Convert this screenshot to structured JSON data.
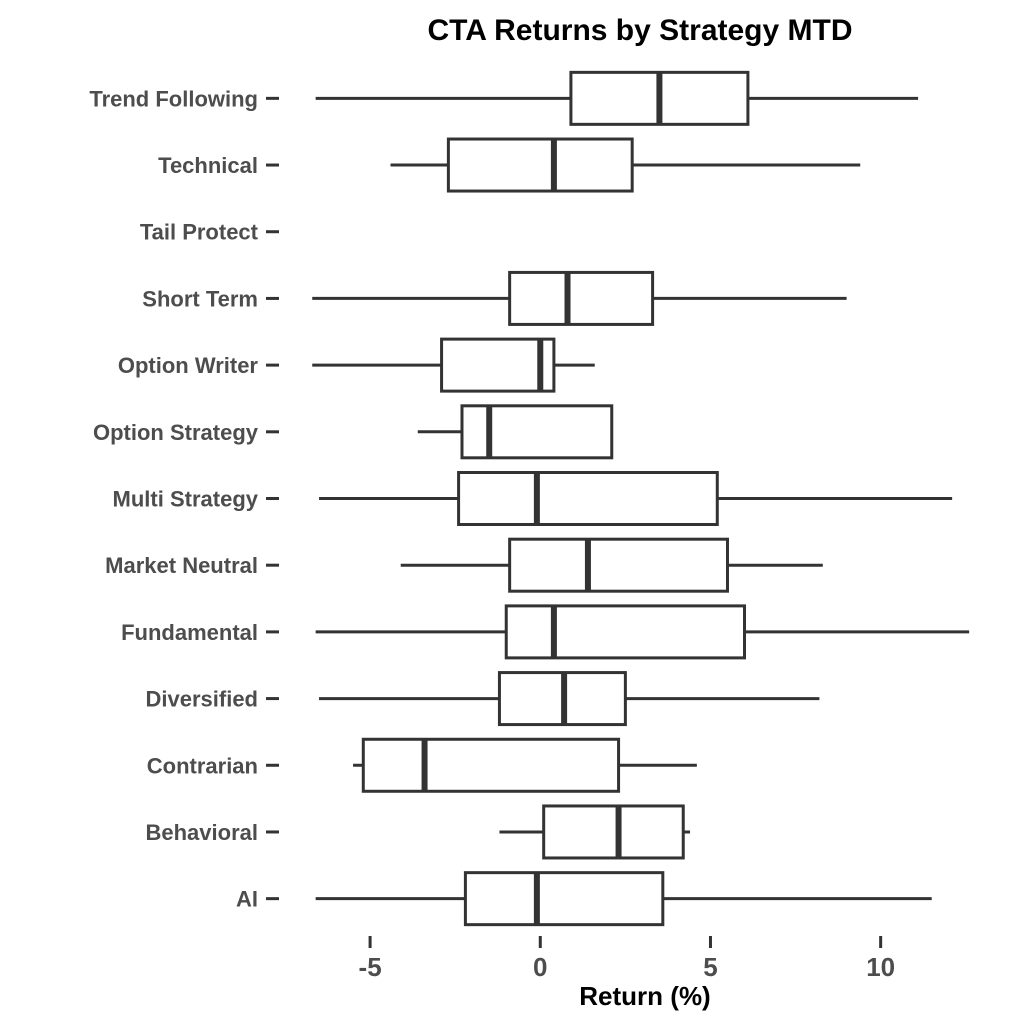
{
  "title": "CTA Returns by Strategy MTD",
  "chart_data": {
    "type": "boxplot",
    "orientation": "horizontal",
    "title": "CTA Returns by Strategy MTD",
    "xlabel": "Return (%)",
    "ylabel": "",
    "xlim": [
      -7.5,
      13.8
    ],
    "x_ticks": [
      -5,
      0,
      5,
      10
    ],
    "x_tick_labels": [
      "-5",
      "0",
      "5",
      "10"
    ],
    "grid": false,
    "legend": "none",
    "categories": [
      "Trend Following",
      "Technical",
      "Tail Protect",
      "Short Term",
      "Option Writer",
      "Option Strategy",
      "Multi Strategy",
      "Market Neutral",
      "Fundamental",
      "Diversified",
      "Contrarian",
      "Behavioral",
      "AI"
    ],
    "boxes": [
      {
        "category": "Trend Following",
        "whisker_low": -6.6,
        "q1": 0.9,
        "median": 3.5,
        "q3": 6.1,
        "whisker_high": 11.1
      },
      {
        "category": "Technical",
        "whisker_low": -4.4,
        "q1": -2.7,
        "median": 0.4,
        "q3": 2.7,
        "whisker_high": 9.4
      },
      {
        "category": "Tail Protect",
        "whisker_low": null,
        "q1": null,
        "median": null,
        "q3": null,
        "whisker_high": null
      },
      {
        "category": "Short Term",
        "whisker_low": -6.7,
        "q1": -0.9,
        "median": 0.8,
        "q3": 3.3,
        "whisker_high": 9.0
      },
      {
        "category": "Option Writer",
        "whisker_low": -6.7,
        "q1": -2.9,
        "median": 0.0,
        "q3": 0.4,
        "whisker_high": 1.6
      },
      {
        "category": "Option Strategy",
        "whisker_low": -3.6,
        "q1": -2.3,
        "median": -1.5,
        "q3": 2.1,
        "whisker_high": 2.1
      },
      {
        "category": "Multi Strategy",
        "whisker_low": -6.5,
        "q1": -2.4,
        "median": -0.1,
        "q3": 5.2,
        "whisker_high": 12.1
      },
      {
        "category": "Market Neutral",
        "whisker_low": -4.1,
        "q1": -0.9,
        "median": 1.4,
        "q3": 5.5,
        "whisker_high": 8.3
      },
      {
        "category": "Fundamental",
        "whisker_low": -6.6,
        "q1": -1.0,
        "median": 0.4,
        "q3": 6.0,
        "whisker_high": 12.6
      },
      {
        "category": "Diversified",
        "whisker_low": -6.5,
        "q1": -1.2,
        "median": 0.7,
        "q3": 2.5,
        "whisker_high": 8.2
      },
      {
        "category": "Contrarian",
        "whisker_low": -5.5,
        "q1": -5.2,
        "median": -3.4,
        "q3": 2.3,
        "whisker_high": 4.6
      },
      {
        "category": "Behavioral",
        "whisker_low": -1.2,
        "q1": 0.1,
        "median": 2.3,
        "q3": 4.2,
        "whisker_high": 4.4
      },
      {
        "category": "AI",
        "whisker_low": -6.6,
        "q1": -2.2,
        "median": -0.1,
        "q3": 3.6,
        "whisker_high": 11.5
      }
    ],
    "colors": {
      "background": "#ffffff",
      "box_fill": "#ffffff",
      "box_stroke": "#333333",
      "whisker_stroke": "#333333",
      "median_stroke": "#333333",
      "tick_stroke": "#333333",
      "category_label": "#4d4d4d",
      "tick_label": "#4d4d4d",
      "title_color": "#000000",
      "axis_title_color": "#000000"
    }
  }
}
